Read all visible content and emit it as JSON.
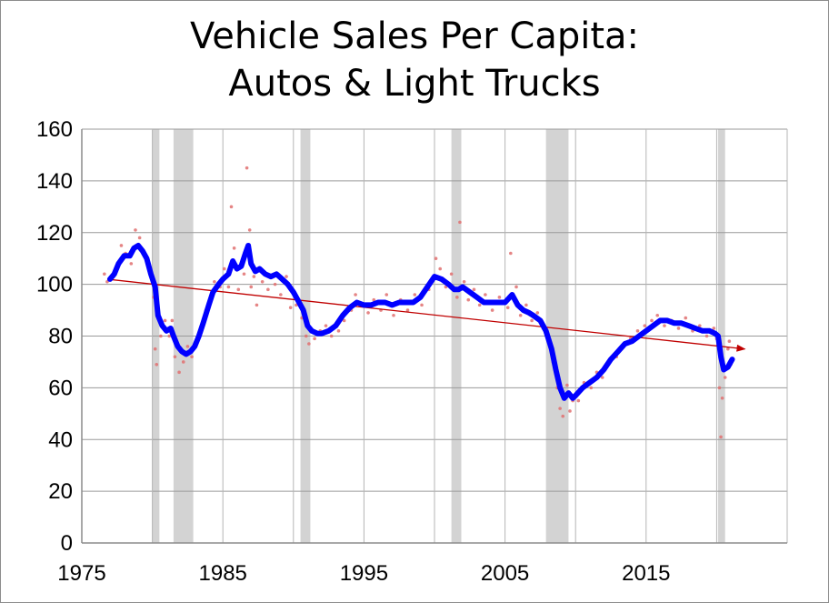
{
  "chart_data": {
    "type": "line",
    "title_lines": [
      "Vehicle Sales Per Capita:",
      "Autos & Light Trucks"
    ],
    "xlabel": "",
    "ylabel": "",
    "xlim": [
      1975,
      2025
    ],
    "ylim": [
      0,
      160
    ],
    "xticks": [
      1975,
      1985,
      1995,
      2005,
      2015
    ],
    "yticks": [
      0,
      20,
      40,
      60,
      80,
      100,
      120,
      140,
      160
    ],
    "grid": "vertical and horizontal",
    "legend": "none",
    "recessions": [
      [
        1980.0,
        1980.5
      ],
      [
        1981.5,
        1982.9
      ],
      [
        1990.5,
        1991.2
      ],
      [
        2001.2,
        2001.9
      ],
      [
        2007.9,
        2009.5
      ],
      [
        2020.1,
        2020.6
      ]
    ],
    "series": [
      {
        "role": "smoothed",
        "color": "#0000ff",
        "points": [
          [
            1977.0,
            102
          ],
          [
            1977.3,
            104
          ],
          [
            1977.6,
            108
          ],
          [
            1978.0,
            111
          ],
          [
            1978.4,
            111
          ],
          [
            1978.7,
            114
          ],
          [
            1979.0,
            115
          ],
          [
            1979.3,
            113
          ],
          [
            1979.6,
            110
          ],
          [
            1979.9,
            104
          ],
          [
            1980.2,
            99
          ],
          [
            1980.4,
            88
          ],
          [
            1980.7,
            84
          ],
          [
            1981.0,
            82
          ],
          [
            1981.3,
            83
          ],
          [
            1981.5,
            80
          ],
          [
            1981.8,
            76
          ],
          [
            1982.1,
            74
          ],
          [
            1982.4,
            73
          ],
          [
            1982.7,
            74
          ],
          [
            1983.0,
            76
          ],
          [
            1983.3,
            80
          ],
          [
            1983.6,
            85
          ],
          [
            1984.0,
            92
          ],
          [
            1984.3,
            97
          ],
          [
            1984.7,
            100
          ],
          [
            1985.0,
            102
          ],
          [
            1985.4,
            104
          ],
          [
            1985.7,
            109
          ],
          [
            1986.0,
            106
          ],
          [
            1986.3,
            107
          ],
          [
            1986.6,
            112
          ],
          [
            1986.8,
            115
          ],
          [
            1987.0,
            108
          ],
          [
            1987.3,
            105
          ],
          [
            1987.6,
            106
          ],
          [
            1988.0,
            104
          ],
          [
            1988.4,
            103
          ],
          [
            1988.8,
            104
          ],
          [
            1989.2,
            102
          ],
          [
            1989.6,
            100
          ],
          [
            1990.0,
            97
          ],
          [
            1990.3,
            94
          ],
          [
            1990.7,
            90
          ],
          [
            1991.0,
            84
          ],
          [
            1991.3,
            82
          ],
          [
            1991.7,
            81
          ],
          [
            1992.0,
            81
          ],
          [
            1992.5,
            82
          ],
          [
            1993.0,
            84
          ],
          [
            1993.5,
            88
          ],
          [
            1994.0,
            91
          ],
          [
            1994.5,
            93
          ],
          [
            1995.0,
            92
          ],
          [
            1995.5,
            92
          ],
          [
            1996.0,
            93
          ],
          [
            1996.5,
            93
          ],
          [
            1997.0,
            92
          ],
          [
            1997.5,
            93
          ],
          [
            1998.0,
            93
          ],
          [
            1998.5,
            93
          ],
          [
            1999.0,
            95
          ],
          [
            1999.5,
            99
          ],
          [
            2000.0,
            103
          ],
          [
            2000.5,
            102
          ],
          [
            2001.0,
            100
          ],
          [
            2001.4,
            98
          ],
          [
            2001.7,
            98
          ],
          [
            2002.0,
            99
          ],
          [
            2002.5,
            97
          ],
          [
            2003.0,
            95
          ],
          [
            2003.5,
            93
          ],
          [
            2004.0,
            93
          ],
          [
            2004.5,
            93
          ],
          [
            2005.0,
            93
          ],
          [
            2005.5,
            96
          ],
          [
            2005.9,
            92
          ],
          [
            2006.3,
            90
          ],
          [
            2006.7,
            89
          ],
          [
            2007.0,
            88
          ],
          [
            2007.5,
            86
          ],
          [
            2007.9,
            82
          ],
          [
            2008.3,
            75
          ],
          [
            2008.6,
            67
          ],
          [
            2008.9,
            60
          ],
          [
            2009.2,
            56
          ],
          [
            2009.5,
            58
          ],
          [
            2009.8,
            56
          ],
          [
            2010.0,
            57
          ],
          [
            2010.5,
            60
          ],
          [
            2011.0,
            62
          ],
          [
            2011.5,
            64
          ],
          [
            2012.0,
            67
          ],
          [
            2012.5,
            71
          ],
          [
            2013.0,
            74
          ],
          [
            2013.5,
            77
          ],
          [
            2014.0,
            78
          ],
          [
            2014.5,
            80
          ],
          [
            2015.0,
            82
          ],
          [
            2015.5,
            84
          ],
          [
            2016.0,
            86
          ],
          [
            2016.5,
            86
          ],
          [
            2017.0,
            85
          ],
          [
            2017.5,
            85
          ],
          [
            2018.0,
            84
          ],
          [
            2018.5,
            83
          ],
          [
            2019.0,
            82
          ],
          [
            2019.5,
            82
          ],
          [
            2019.9,
            81
          ],
          [
            2020.1,
            80
          ],
          [
            2020.3,
            72
          ],
          [
            2020.5,
            67
          ],
          [
            2020.8,
            68
          ],
          [
            2021.0,
            70
          ],
          [
            2021.1,
            71
          ]
        ]
      },
      {
        "role": "monthly",
        "color": "#e07070",
        "points": [
          [
            1976.6,
            104
          ],
          [
            1976.8,
            101
          ],
          [
            1977.2,
            103
          ],
          [
            1977.5,
            106
          ],
          [
            1977.8,
            115
          ],
          [
            1978.1,
            112
          ],
          [
            1978.5,
            108
          ],
          [
            1978.8,
            121
          ],
          [
            1979.1,
            118
          ],
          [
            1979.4,
            112
          ],
          [
            1979.8,
            106
          ],
          [
            1980.1,
            95
          ],
          [
            1980.2,
            75
          ],
          [
            1980.3,
            69
          ],
          [
            1980.6,
            80
          ],
          [
            1980.9,
            86
          ],
          [
            1981.2,
            80
          ],
          [
            1981.4,
            86
          ],
          [
            1981.6,
            72
          ],
          [
            1981.9,
            66
          ],
          [
            1982.2,
            70
          ],
          [
            1982.5,
            76
          ],
          [
            1982.8,
            72
          ],
          [
            1983.2,
            78
          ],
          [
            1983.5,
            83
          ],
          [
            1983.8,
            90
          ],
          [
            1984.1,
            94
          ],
          [
            1984.4,
            101
          ],
          [
            1984.8,
            99
          ],
          [
            1985.1,
            106
          ],
          [
            1985.4,
            99
          ],
          [
            1985.6,
            130
          ],
          [
            1985.8,
            114
          ],
          [
            1986.1,
            98
          ],
          [
            1986.5,
            104
          ],
          [
            1986.7,
            145
          ],
          [
            1986.9,
            121
          ],
          [
            1987.0,
            99
          ],
          [
            1987.2,
            103
          ],
          [
            1987.4,
            92
          ],
          [
            1987.8,
            101
          ],
          [
            1988.2,
            98
          ],
          [
            1988.7,
            100
          ],
          [
            1989.1,
            96
          ],
          [
            1989.5,
            103
          ],
          [
            1989.8,
            91
          ],
          [
            1990.2,
            92
          ],
          [
            1990.6,
            87
          ],
          [
            1990.9,
            80
          ],
          [
            1991.1,
            77
          ],
          [
            1991.5,
            79
          ],
          [
            1991.9,
            82
          ],
          [
            1992.3,
            84
          ],
          [
            1992.7,
            80
          ],
          [
            1993.2,
            82
          ],
          [
            1993.6,
            86
          ],
          [
            1994.1,
            90
          ],
          [
            1994.4,
            96
          ],
          [
            1994.8,
            92
          ],
          [
            1995.3,
            89
          ],
          [
            1995.7,
            94
          ],
          [
            1996.2,
            90
          ],
          [
            1996.6,
            96
          ],
          [
            1997.1,
            88
          ],
          [
            1997.6,
            94
          ],
          [
            1998.1,
            90
          ],
          [
            1998.6,
            96
          ],
          [
            1999.1,
            92
          ],
          [
            1999.6,
            98
          ],
          [
            2000.1,
            110
          ],
          [
            2000.4,
            106
          ],
          [
            2000.8,
            99
          ],
          [
            2001.2,
            104
          ],
          [
            2001.6,
            95
          ],
          [
            2001.8,
            124
          ],
          [
            2002.1,
            101
          ],
          [
            2002.4,
            94
          ],
          [
            2002.8,
            98
          ],
          [
            2003.2,
            92
          ],
          [
            2003.6,
            96
          ],
          [
            2004.1,
            90
          ],
          [
            2004.6,
            95
          ],
          [
            2005.2,
            91
          ],
          [
            2005.4,
            112
          ],
          [
            2005.8,
            99
          ],
          [
            2006.1,
            88
          ],
          [
            2006.5,
            92
          ],
          [
            2006.9,
            86
          ],
          [
            2007.3,
            89
          ],
          [
            2007.7,
            83
          ],
          [
            2008.1,
            79
          ],
          [
            2008.4,
            70
          ],
          [
            2008.7,
            60
          ],
          [
            2008.9,
            52
          ],
          [
            2009.1,
            49
          ],
          [
            2009.4,
            61
          ],
          [
            2009.6,
            51
          ],
          [
            2009.8,
            55
          ],
          [
            2010.2,
            55
          ],
          [
            2010.6,
            62
          ],
          [
            2011.1,
            60
          ],
          [
            2011.5,
            66
          ],
          [
            2011.9,
            64
          ],
          [
            2012.4,
            70
          ],
          [
            2012.9,
            72
          ],
          [
            2013.4,
            76
          ],
          [
            2013.9,
            79
          ],
          [
            2014.4,
            82
          ],
          [
            2014.9,
            84
          ],
          [
            2015.4,
            86
          ],
          [
            2015.8,
            88
          ],
          [
            2016.3,
            84
          ],
          [
            2016.8,
            86
          ],
          [
            2017.3,
            83
          ],
          [
            2017.8,
            87
          ],
          [
            2018.3,
            82
          ],
          [
            2018.8,
            84
          ],
          [
            2019.3,
            80
          ],
          [
            2019.8,
            83
          ],
          [
            2020.0,
            79
          ],
          [
            2020.2,
            60
          ],
          [
            2020.3,
            41
          ],
          [
            2020.4,
            56
          ],
          [
            2020.6,
            64
          ],
          [
            2020.8,
            75
          ],
          [
            2020.9,
            78
          ],
          [
            2021.0,
            69
          ]
        ]
      },
      {
        "role": "trend",
        "color": "#c00000",
        "points": [
          [
            1976.8,
            102
          ],
          [
            2022.0,
            75
          ]
        ]
      }
    ]
  }
}
